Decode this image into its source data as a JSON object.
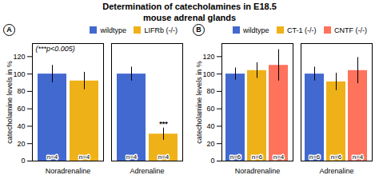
{
  "title": "Determination of catecholamines in E18.5\nmouse adrenal glands",
  "chart_data": [
    {
      "type": "bar",
      "panel_label": "A",
      "categories": [
        "Noradrenaline",
        "Adrenaline"
      ],
      "series": [
        {
          "name": "wildtype",
          "values": [
            100,
            100
          ],
          "errors": [
            10,
            8
          ],
          "n_labels": [
            "n=4",
            "n=4"
          ]
        },
        {
          "name": "LIFRb (-/-)",
          "values": [
            92,
            31
          ],
          "errors": [
            10,
            7
          ],
          "n_labels": [
            "n=4",
            "n=4"
          ]
        }
      ],
      "ylabel": "catecholamine levels in %",
      "ylim": [
        0,
        135
      ],
      "yticks": [
        0,
        20,
        40,
        60,
        80,
        100,
        120
      ],
      "annotations": [
        {
          "text": "(***p<0.005)"
        },
        {
          "text": "***",
          "category": "Adrenaline",
          "series": "LIFRb (-/-)"
        }
      ],
      "legend": "upper right",
      "grid": false
    },
    {
      "type": "bar",
      "panel_label": "B",
      "categories": [
        "Noradrenaline",
        "Adrenaline"
      ],
      "series": [
        {
          "name": "wildtype",
          "values": [
            100,
            100
          ],
          "errors": [
            7,
            8
          ],
          "n_labels": [
            "n=6",
            "n=6"
          ]
        },
        {
          "name": "CT-1 (-/-)",
          "values": [
            104,
            91
          ],
          "errors": [
            9,
            10
          ],
          "n_labels": [
            "n=6",
            "n=6"
          ]
        },
        {
          "name": "CNTF (-/-)",
          "values": [
            110,
            104
          ],
          "errors": [
            18,
            15
          ],
          "n_labels": [
            "n=4",
            "n=4"
          ]
        }
      ],
      "ylabel": "catecholamine levels in %",
      "ylim": [
        0,
        135
      ],
      "yticks": [
        0,
        20,
        40,
        60,
        80,
        100,
        120
      ],
      "legend": "upper right",
      "grid": false
    }
  ]
}
